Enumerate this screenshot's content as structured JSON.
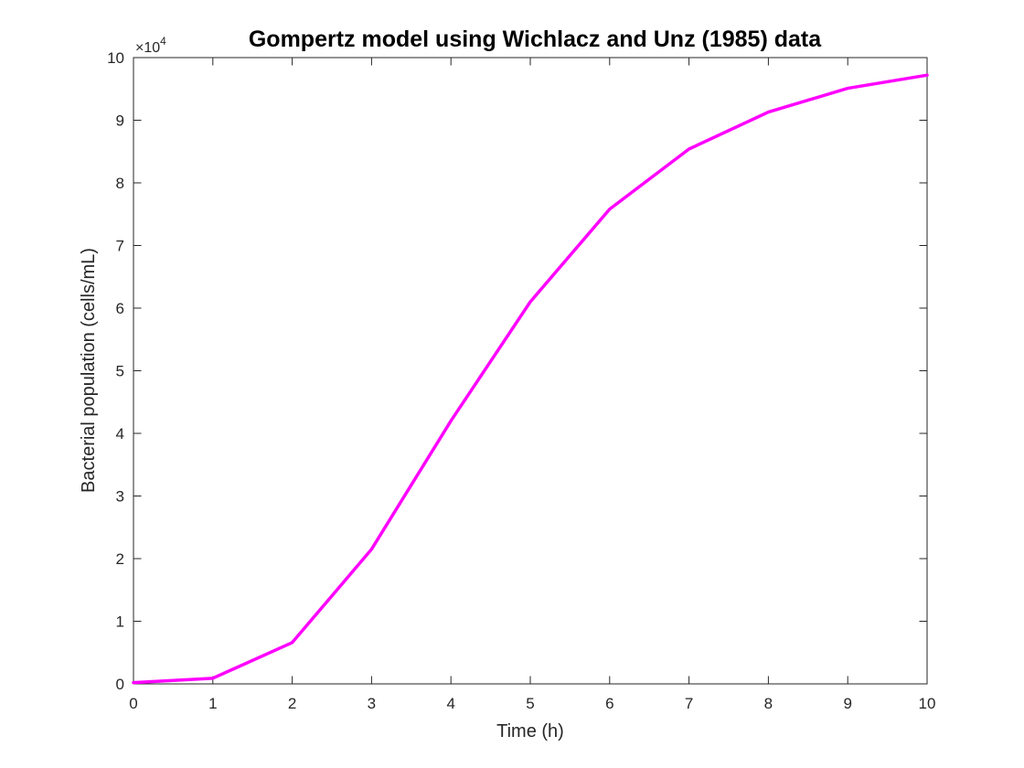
{
  "chart_data": {
    "type": "line",
    "title": "Gompertz model using Wichlacz and Unz (1985) data",
    "xlabel": "Time (h)",
    "ylabel": "Bacterial population (cells/mL)",
    "xlim": [
      0,
      10
    ],
    "ylim": [
      0,
      100000
    ],
    "x_ticks": [
      "0",
      "1",
      "2",
      "3",
      "4",
      "5",
      "6",
      "7",
      "8",
      "9",
      "10"
    ],
    "y_ticks": [
      "0",
      "1",
      "2",
      "3",
      "4",
      "5",
      "6",
      "7",
      "8",
      "9",
      "10"
    ],
    "y_exponent": {
      "base": "×10",
      "power": "4"
    },
    "grid": false,
    "legend": "none",
    "line_color": "#ff00ff",
    "x": [
      0,
      1,
      2,
      3,
      4,
      5,
      6,
      7,
      8,
      9,
      10
    ],
    "series": [
      {
        "values": [
          200,
          900,
          6600,
          21500,
          42000,
          61000,
          75800,
          85400,
          91300,
          95100,
          97200
        ]
      }
    ]
  }
}
